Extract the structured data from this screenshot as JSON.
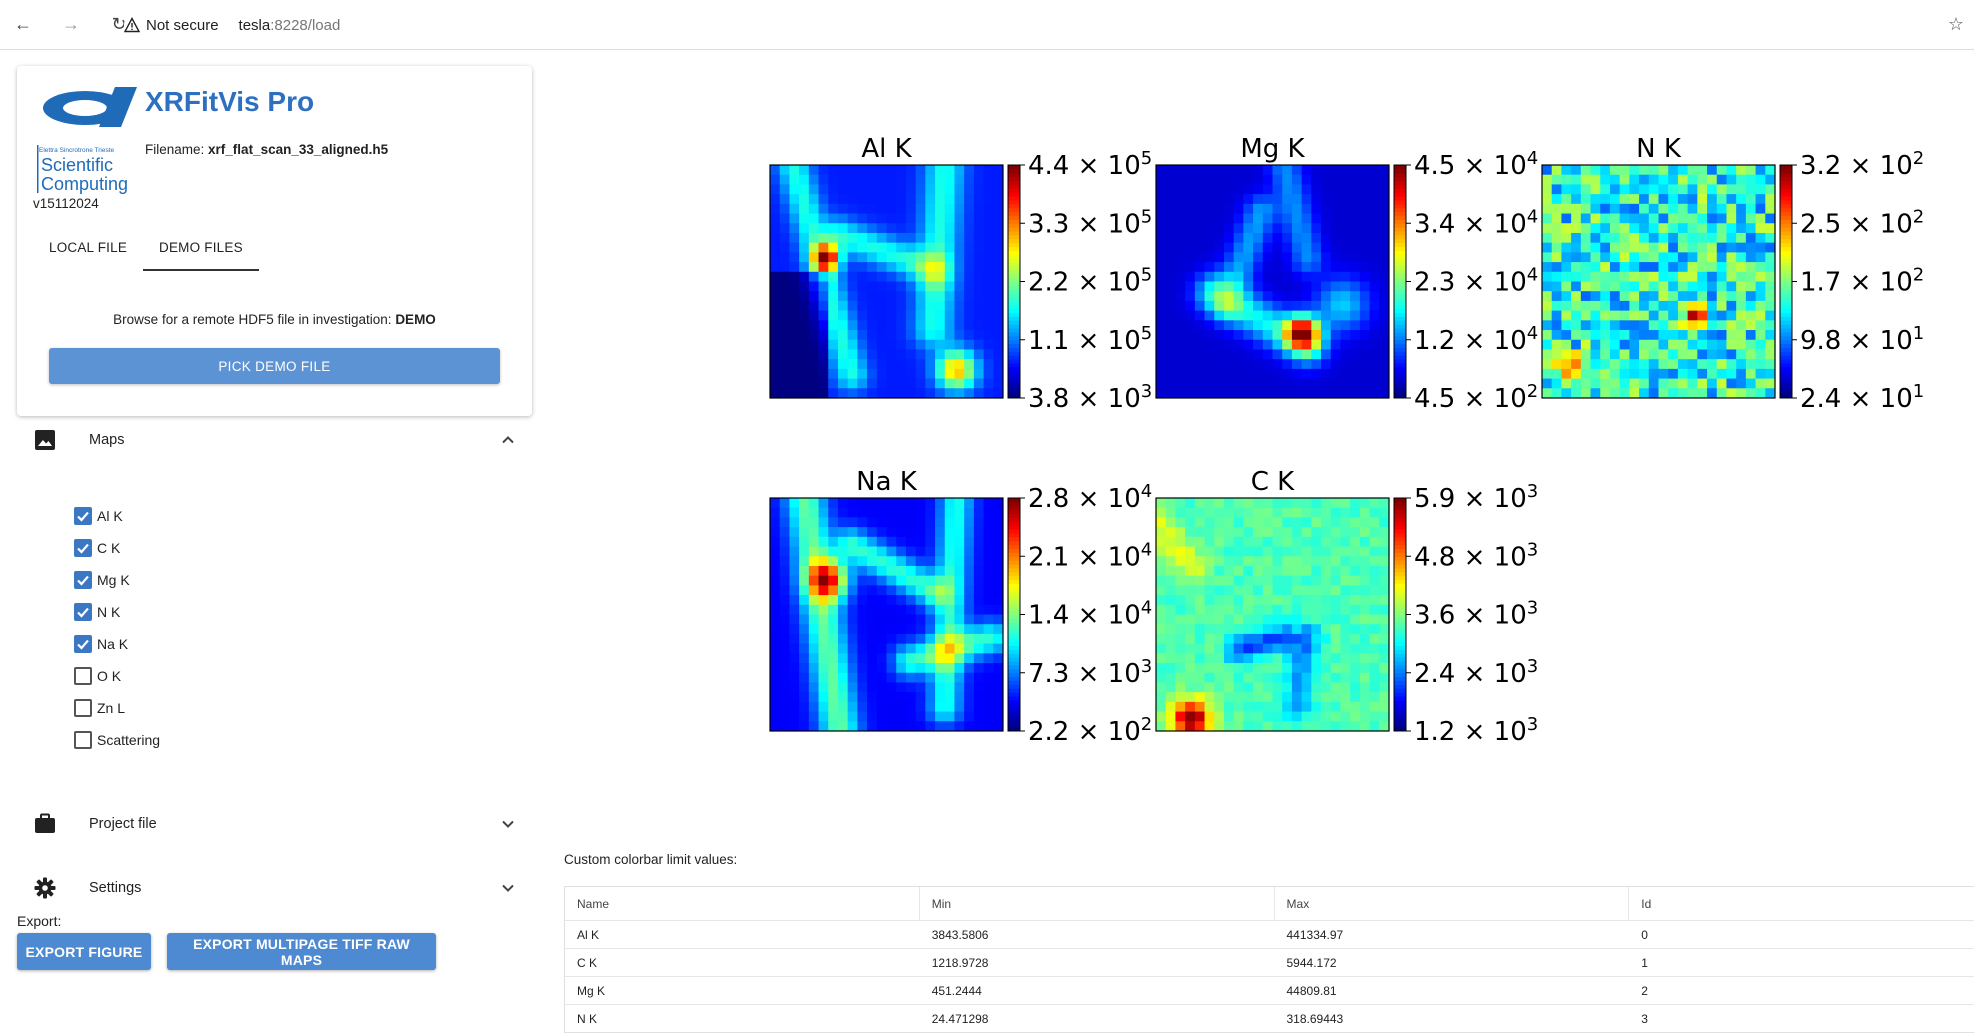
{
  "browser": {
    "not_secure": "Not secure",
    "url_host": "tesla",
    "url_rest": ":8228/load"
  },
  "app": {
    "title": "XRFitVis Pro",
    "logo_text_small": "Elettra Sincrotrone Trieste",
    "logo_text_1": "Scientific",
    "logo_text_2": "Computing",
    "filename_label": "Filename:",
    "filename": "xrf_flat_scan_33_aligned.h5",
    "version": "v15112024"
  },
  "tabs": [
    {
      "label": "LOCAL FILE",
      "active": false
    },
    {
      "label": "DEMO FILES",
      "active": true
    }
  ],
  "browse": {
    "text": "Browse for a remote HDF5 file in investigation:",
    "investigation": "DEMO",
    "pick_button": "PICK DEMO FILE"
  },
  "sections": {
    "maps": "Maps",
    "project": "Project file",
    "settings": "Settings"
  },
  "maps": [
    {
      "label": "Al K",
      "checked": true
    },
    {
      "label": "C K",
      "checked": true
    },
    {
      "label": "Mg K",
      "checked": true
    },
    {
      "label": "N K",
      "checked": true
    },
    {
      "label": "Na K",
      "checked": true
    },
    {
      "label": "O K",
      "checked": false
    },
    {
      "label": "Zn L",
      "checked": false
    },
    {
      "label": "Scattering",
      "checked": false
    }
  ],
  "export": {
    "label": "Export:",
    "figure_button": "EXPORT FIGURE",
    "tiff_button": "EXPORT MULTIPAGE TIFF RAW MAPS"
  },
  "chart_data": {
    "type": "heatmap",
    "colormap": "jet",
    "grid": false,
    "maps": [
      {
        "title": "Al K",
        "min": 3843.5806,
        "max": 441334.97,
        "ticks": [
          [
            "3.8",
            "3"
          ],
          [
            "1.1",
            "5"
          ],
          [
            "2.2",
            "5"
          ],
          [
            "3.3",
            "5"
          ],
          [
            "4.4",
            "5"
          ]
        ]
      },
      {
        "title": "Mg K",
        "min": 451.2444,
        "max": 44809.81,
        "ticks": [
          [
            "4.5",
            "2"
          ],
          [
            "1.2",
            "4"
          ],
          [
            "2.3",
            "4"
          ],
          [
            "3.4",
            "4"
          ],
          [
            "4.5",
            "4"
          ]
        ]
      },
      {
        "title": "N K",
        "min": 24.471298,
        "max": 318.69443,
        "ticks": [
          [
            "2.4",
            "1"
          ],
          [
            "9.8",
            "1"
          ],
          [
            "1.7",
            "2"
          ],
          [
            "2.5",
            "2"
          ],
          [
            "3.2",
            "2"
          ]
        ]
      },
      {
        "title": "Na K",
        "min": 220,
        "max": 28000,
        "ticks": [
          [
            "2.2",
            "2"
          ],
          [
            "7.3",
            "3"
          ],
          [
            "1.4",
            "4"
          ],
          [
            "2.1",
            "4"
          ],
          [
            "2.8",
            "4"
          ]
        ]
      },
      {
        "title": "C K",
        "min": 1218.9728,
        "max": 5944.172,
        "ticks": [
          [
            "1.2",
            "3"
          ],
          [
            "2.4",
            "3"
          ],
          [
            "3.6",
            "3"
          ],
          [
            "4.8",
            "3"
          ],
          [
            "5.9",
            "3"
          ]
        ]
      }
    ]
  },
  "colorbar_table": {
    "caption": "Custom colorbar limit values:",
    "columns": [
      "Name",
      "Min",
      "Max",
      "Id"
    ],
    "rows": [
      [
        "Al K",
        "3843.5806",
        "441334.97",
        "0"
      ],
      [
        "C K",
        "1218.9728",
        "5944.172",
        "1"
      ],
      [
        "Mg K",
        "451.2444",
        "44809.81",
        "2"
      ],
      [
        "N K",
        "24.471298",
        "318.69443",
        "3"
      ]
    ]
  }
}
